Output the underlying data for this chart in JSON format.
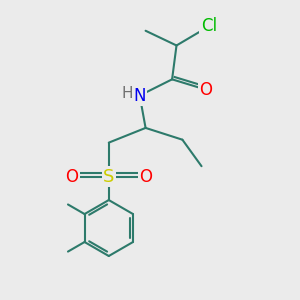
{
  "bg_color": "#ebebeb",
  "bond_color": "#2d7a6b",
  "bond_width": 1.5,
  "atom_colors": {
    "Cl": "#00bb00",
    "O": "#ff0000",
    "N": "#0000ee",
    "S": "#cccc00",
    "H": "#707070",
    "C": "#2d7a6b"
  },
  "font_size_large": 12,
  "font_size_small": 10
}
